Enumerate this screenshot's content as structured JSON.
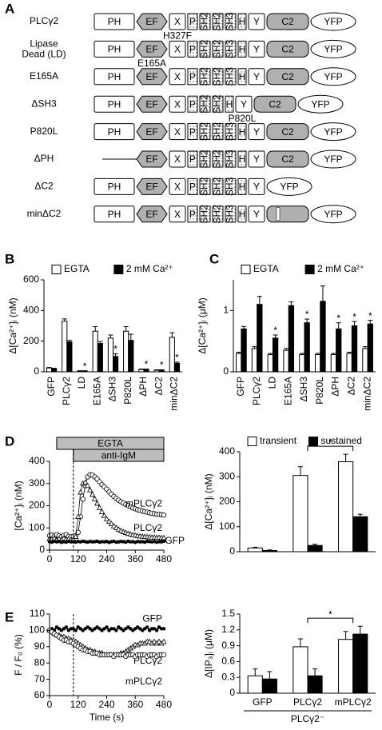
{
  "panel_labels": [
    "A",
    "B",
    "C",
    "D",
    "E"
  ],
  "diagram": {
    "rows": [
      {
        "label": "PLCγ2",
        "domains": [
          "PH",
          "EF",
          "X",
          "P",
          "SH2",
          "SH2",
          "SH3",
          "H",
          "Y",
          "C2",
          "YFP"
        ]
      },
      {
        "label": "Lipase Dead (LD)",
        "domains": [
          "PH",
          "EF",
          "X",
          "P",
          "SH2",
          "SH2",
          "SH3",
          "H",
          "Y",
          "C2",
          "YFP"
        ],
        "mutation": {
          "text": "H327F",
          "domain": 2
        }
      },
      {
        "label": "E165A",
        "domains": [
          "PH",
          "EF",
          "X",
          "P",
          "SH2",
          "SH2",
          "SH3",
          "H",
          "Y",
          "C2",
          "YFP"
        ],
        "mutation": {
          "text": "E165A",
          "domain": 1
        }
      },
      {
        "label": "ΔSH3",
        "domains": [
          "PH",
          "EF",
          "X",
          "P",
          "SH2",
          "SH2",
          "H",
          "Y",
          "C2",
          "YFP"
        ]
      },
      {
        "label": "P820L",
        "domains": [
          "PH",
          "EF",
          "X",
          "P",
          "SH2",
          "SH2",
          "SH3",
          "H",
          "Y",
          "C2",
          "YFP"
        ],
        "mutation": {
          "text": "P820L",
          "domain": 7
        }
      },
      {
        "label": "ΔPH",
        "domains": [
          "EF",
          "X",
          "P",
          "SH2",
          "SH2",
          "SH3",
          "H",
          "Y",
          "C2",
          "YFP"
        ]
      },
      {
        "label": "ΔC2",
        "domains": [
          "PH",
          "EF",
          "X",
          "P",
          "SH2",
          "SH2",
          "SH3",
          "H",
          "Y",
          "YFP"
        ]
      },
      {
        "label": "minΔC2",
        "domains": [
          "PH",
          "EF",
          "X",
          "P",
          "SH2",
          "SH2",
          "SH3",
          "H",
          "Y",
          "YFP"
        ]
      }
    ]
  },
  "chart_data": [
    {
      "type": "bar",
      "ylabel": "Δ[Ca²⁺]ᵢ (nM)",
      "rotate_labels": true,
      "legend": "top",
      "categories": [
        "GFP",
        "PLCγ2",
        "LD",
        "E165A",
        "ΔSH3",
        "P820L",
        "ΔPH",
        "ΔC2",
        "minΔC2"
      ],
      "series": [
        {
          "name": "EGTA",
          "color": "#ffffff",
          "values": [
            25,
            330,
            5,
            265,
            220,
            265,
            15,
            10,
            225
          ],
          "errors": [
            3,
            15,
            2,
            30,
            20,
            30,
            3,
            3,
            30
          ]
        },
        {
          "name": "2 mM Ca²⁺",
          "color": "#000000",
          "values": [
            20,
            195,
            5,
            185,
            100,
            205,
            15,
            10,
            55
          ],
          "errors": [
            3,
            10,
            2,
            12,
            18,
            40,
            3,
            3,
            8
          ]
        }
      ],
      "ylim": [
        0,
        600
      ],
      "yticks": [
        0,
        200,
        400,
        600
      ],
      "annotations": [
        {
          "text": "*",
          "category": 2,
          "series": 1
        },
        {
          "text": "*",
          "category": 4,
          "series": 1
        },
        {
          "text": "*",
          "category": 6,
          "series": 1
        },
        {
          "text": "*",
          "category": 7,
          "series": 1
        },
        {
          "text": "*",
          "category": 8,
          "series": 1
        }
      ]
    },
    {
      "type": "bar",
      "ylabel": "Δ[Ca²⁺]ᵢ (μM)",
      "rotate_labels": true,
      "legend": "top",
      "categories": [
        "GFP",
        "PLCγ2",
        "LD",
        "E165A",
        "ΔSH3",
        "P820L",
        "ΔPH",
        "ΔC2",
        "minΔC2"
      ],
      "series": [
        {
          "name": "EGTA",
          "color": "#ffffff",
          "values": [
            0.3,
            0.38,
            0.28,
            0.35,
            0.28,
            0.28,
            0.28,
            0.3,
            0.38
          ],
          "errors": [
            0.02,
            0.03,
            0.02,
            0.03,
            0.02,
            0.02,
            0.02,
            0.02,
            0.03
          ]
        },
        {
          "name": "2 mM Ca²⁺",
          "color": "#000000",
          "values": [
            0.7,
            1.1,
            0.55,
            1.08,
            0.8,
            1.15,
            0.7,
            0.75,
            0.78
          ],
          "errors": [
            0.04,
            0.13,
            0.05,
            0.06,
            0.06,
            0.25,
            0.1,
            0.07,
            0.06
          ]
        }
      ],
      "ylim": [
        0,
        1.5
      ],
      "yticks": [
        0,
        1
      ],
      "annotations": [
        {
          "text": "*",
          "category": 2,
          "series": 1
        },
        {
          "text": "*",
          "category": 4,
          "series": 1
        },
        {
          "text": "*",
          "category": 6,
          "series": 1
        },
        {
          "text": "*",
          "category": 7,
          "series": 1
        },
        {
          "text": "*",
          "category": 8,
          "series": 1
        }
      ]
    },
    {
      "type": "line",
      "ylabel": "[Ca²⁺]ᵢ (nM)",
      "periods": [
        {
          "label": "EGTA",
          "start": 30,
          "end": 480
        },
        {
          "label": "anti-IgM",
          "start": 100,
          "end": 480
        }
      ],
      "vline": 100,
      "x": [
        0,
        10,
        20,
        30,
        40,
        50,
        60,
        70,
        80,
        90,
        100,
        110,
        120,
        130,
        140,
        150,
        160,
        170,
        180,
        190,
        200,
        210,
        220,
        230,
        240,
        250,
        260,
        270,
        280,
        290,
        300,
        310,
        320,
        330,
        340,
        350,
        360,
        370,
        380,
        390,
        400,
        410,
        420,
        430,
        440,
        450,
        460,
        470,
        480
      ],
      "series": [
        {
          "name": "mPLCγ2",
          "color": "#000000",
          "marker": "circle-open",
          "values": [
            65,
            68,
            62,
            70,
            64,
            60,
            66,
            70,
            62,
            60,
            60,
            65,
            80,
            150,
            230,
            290,
            330,
            340,
            338,
            330,
            320,
            308,
            295,
            285,
            275,
            262,
            252,
            242,
            233,
            225,
            218,
            212,
            206,
            200,
            195,
            190,
            186,
            182,
            179,
            176,
            173,
            171,
            168,
            166,
            164,
            162,
            161,
            160,
            158
          ]
        },
        {
          "name": "PLCγ2",
          "color": "#000000",
          "marker": "triangle-open",
          "values": [
            50,
            48,
            52,
            45,
            50,
            47,
            52,
            48,
            50,
            46,
            48,
            60,
            150,
            260,
            300,
            305,
            290,
            270,
            250,
            230,
            210,
            190,
            172,
            155,
            140,
            128,
            118,
            108,
            100,
            93,
            87,
            82,
            78,
            74,
            71,
            68,
            66,
            64,
            62,
            61,
            60,
            59,
            58,
            57,
            57,
            56,
            56,
            55,
            55
          ]
        },
        {
          "name": "GFP",
          "color": "#000000",
          "marker": "circle-filled",
          "values": [
            38,
            36,
            40,
            37,
            39,
            35,
            38,
            36,
            40,
            37,
            38,
            36,
            39,
            37,
            40,
            38,
            36,
            39,
            37,
            38,
            40,
            36,
            38,
            37,
            39,
            35,
            38,
            40,
            36,
            37,
            39,
            38,
            36,
            40,
            37,
            38,
            35,
            39,
            37,
            38,
            36,
            40,
            38,
            37,
            39,
            36,
            38,
            37,
            40
          ]
        }
      ],
      "xlim": [
        0,
        480
      ],
      "xticks": [
        0,
        120,
        240,
        360,
        480
      ],
      "ylim": [
        0,
        400
      ],
      "yticks": [
        0,
        100,
        200,
        300,
        400
      ]
    },
    {
      "type": "bar",
      "ylabel": "Δ[Ca²⁺]ᵢ (nM)",
      "legend": "top",
      "categories": [
        null,
        null,
        null
      ],
      "series": [
        {
          "name": "transient",
          "color": "#ffffff",
          "values": [
            15,
            305,
            360
          ],
          "errors": [
            3,
            35,
            30
          ]
        },
        {
          "name": "sustained",
          "color": "#000000",
          "values": [
            5,
            25,
            140
          ],
          "errors": [
            2,
            5,
            10
          ]
        }
      ],
      "ylim": [
        0,
        400
      ],
      "yticks": [
        0,
        100,
        200,
        300,
        400
      ],
      "annotations": [
        {
          "text": "*",
          "from": 1,
          "to": 2
        }
      ]
    },
    {
      "type": "line",
      "ylabel": "F / F₀ (%)",
      "xlabel": "Time (s)",
      "vline": 100,
      "x": [
        0,
        10,
        20,
        30,
        40,
        50,
        60,
        70,
        80,
        90,
        100,
        110,
        120,
        130,
        140,
        150,
        160,
        170,
        180,
        190,
        200,
        210,
        220,
        230,
        240,
        250,
        260,
        270,
        280,
        290,
        300,
        310,
        320,
        330,
        340,
        350,
        360,
        370,
        380,
        390,
        400,
        410,
        420,
        430,
        440,
        450,
        460,
        470,
        480
      ],
      "series": [
        {
          "name": "GFP",
          "color": "#000000",
          "marker": "circle-filled",
          "values": [
            100,
            101,
            100,
            102,
            101,
            100,
            101,
            102,
            100,
            101,
            101,
            100,
            102,
            101,
            100,
            101,
            102,
            101,
            100,
            101,
            102,
            101,
            100,
            101,
            102,
            100,
            101,
            101,
            100,
            102,
            101,
            100,
            101,
            102,
            101,
            100,
            101,
            102,
            101,
            100,
            101,
            102,
            100,
            101,
            101,
            100,
            102,
            101,
            101
          ]
        },
        {
          "name": "PLCγ2",
          "color": "#000000",
          "marker": "triangle-open",
          "values": [
            100,
            99,
            98,
            97,
            97,
            96,
            96,
            95,
            95,
            94,
            94,
            93,
            92,
            91,
            90,
            89,
            88,
            88,
            87,
            87,
            86,
            86,
            86,
            85,
            85,
            85,
            85,
            85,
            85,
            85,
            86,
            86,
            87,
            88,
            89,
            90,
            91,
            91,
            92,
            92,
            92,
            93,
            93,
            92,
            93,
            92,
            93,
            92,
            93
          ]
        },
        {
          "name": "mPLCγ2",
          "color": "#000000",
          "marker": "circle-open",
          "values": [
            100,
            99,
            98,
            97,
            96,
            95,
            94,
            94,
            93,
            93,
            92,
            91,
            90,
            89,
            88,
            88,
            87,
            87,
            86,
            86,
            86,
            85,
            85,
            85,
            85,
            85,
            85,
            84,
            85,
            85,
            85,
            85,
            84,
            85,
            85,
            85,
            84,
            85,
            85,
            85,
            85,
            84,
            85,
            85,
            85,
            84,
            85,
            85,
            85
          ]
        }
      ],
      "xlim": [
        0,
        480
      ],
      "xticks": [
        0,
        120,
        240,
        360,
        480
      ],
      "ylim": [
        60,
        110
      ],
      "yticks": [
        60,
        70,
        80,
        90,
        100,
        110
      ]
    },
    {
      "type": "bar",
      "ylabel": "Δ[IP₃]ᵢ (μM)",
      "xgroup_label": "PLCγ2⁻",
      "categories": [
        "GFP",
        "PLCγ2",
        "mPLCγ2"
      ],
      "series": [
        {
          "color": "#ffffff",
          "values": [
            0.33,
            0.88,
            1.02
          ],
          "errors": [
            0.13,
            0.15,
            0.15
          ]
        },
        {
          "color": "#000000",
          "values": [
            0.27,
            0.33,
            1.12
          ],
          "errors": [
            0.14,
            0.13,
            0.15
          ]
        }
      ],
      "ylim": [
        0,
        1.5
      ],
      "yticks": [
        0,
        0.3,
        0.6,
        0.9,
        1.2,
        1.5
      ],
      "annotations": [
        {
          "text": "*",
          "from": 1,
          "to": 2
        }
      ]
    }
  ]
}
